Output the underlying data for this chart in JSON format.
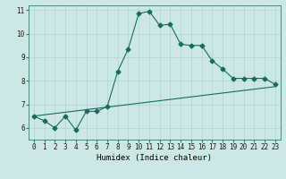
{
  "xlabel": "Humidex (Indice chaleur)",
  "ylabel": "",
  "bg_color": "#cce8e5",
  "line_color": "#1a6b5e",
  "trend_color": "#1a6b5e",
  "line1_x": [
    0,
    1,
    2,
    3,
    4,
    5,
    6,
    7,
    8,
    9,
    10,
    11,
    12,
    13,
    14,
    15,
    16,
    17,
    18,
    19,
    20,
    21,
    22,
    23
  ],
  "line1_y": [
    6.5,
    6.3,
    6.0,
    6.5,
    5.9,
    6.7,
    6.7,
    6.9,
    8.4,
    9.35,
    10.85,
    10.95,
    10.35,
    10.4,
    9.55,
    9.5,
    9.5,
    8.85,
    8.5,
    8.1,
    8.1,
    8.1,
    8.1,
    7.85
  ],
  "line2_x": [
    0,
    23
  ],
  "line2_y": [
    6.5,
    7.75
  ],
  "xlim": [
    -0.5,
    23.5
  ],
  "ylim": [
    5.5,
    11.2
  ],
  "xticks": [
    0,
    1,
    2,
    3,
    4,
    5,
    6,
    7,
    8,
    9,
    10,
    11,
    12,
    13,
    14,
    15,
    16,
    17,
    18,
    19,
    20,
    21,
    22,
    23
  ],
  "yticks": [
    6,
    7,
    8,
    9,
    10,
    11
  ],
  "marker": "D",
  "markersize": 2.5,
  "grid_color": "#aed4d0",
  "tick_fontsize": 5.5,
  "xlabel_fontsize": 6.5
}
